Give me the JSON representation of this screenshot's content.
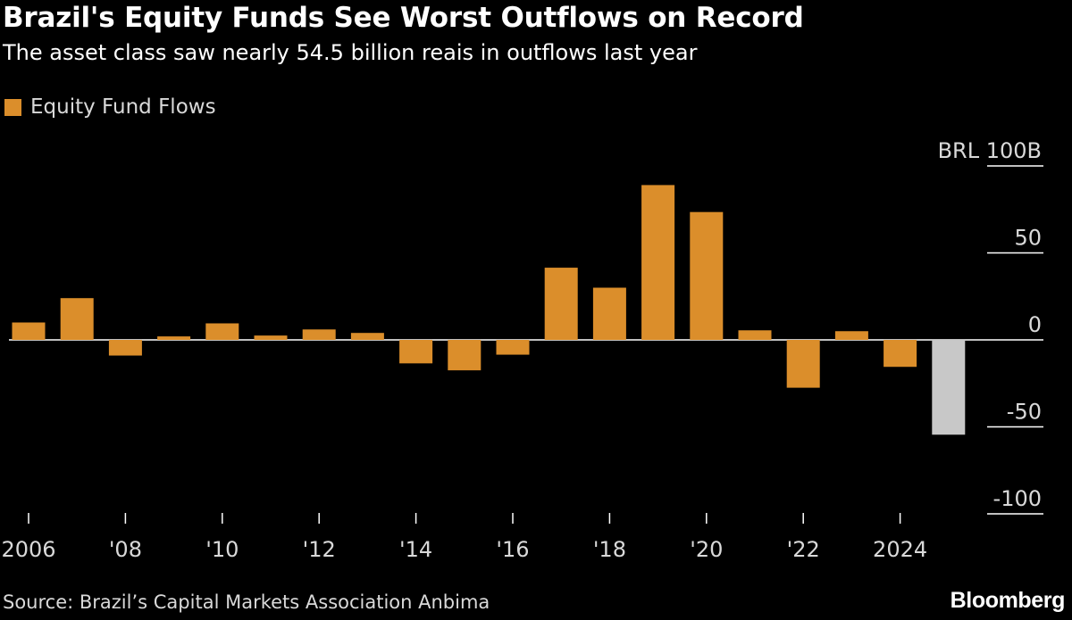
{
  "title": "Brazil's Equity Funds See Worst Outflows on Record",
  "subtitle": "The asset class saw nearly 54.5 billion reais in outflows last year",
  "legend": {
    "label": "Equity Fund Flows"
  },
  "source": "Source: Brazil’s Capital Markets Association Anbima",
  "brand": "Bloomberg",
  "colors": {
    "bar": "#db8e2b",
    "highlight": "#c8c8c8",
    "axis": "#ffffff",
    "text": "#d9d9d9",
    "background": "#000000"
  },
  "chart_data": {
    "type": "bar",
    "title": "Brazil's Equity Funds See Worst Outflows on Record",
    "unit_label": "BRL 100B",
    "ylim": [
      -100,
      100
    ],
    "y_ticks": [
      {
        "value": 100,
        "label": "BRL 100B"
      },
      {
        "value": 50,
        "label": "50"
      },
      {
        "value": 0,
        "label": "0"
      },
      {
        "value": -50,
        "label": "-50"
      },
      {
        "value": -100,
        "label": "-100"
      }
    ],
    "categories": [
      "2006",
      "2007",
      "2008",
      "2009",
      "2010",
      "2011",
      "2012",
      "2013",
      "2014",
      "2015",
      "2016",
      "2017",
      "2018",
      "2019",
      "2020",
      "2021",
      "2022",
      "2023",
      "2024",
      "2025"
    ],
    "values": [
      10,
      24,
      -9,
      2,
      9.5,
      2.5,
      6,
      4,
      -13.5,
      -17.5,
      -8.5,
      41.5,
      30,
      89,
      73.5,
      5.5,
      -27.5,
      5,
      -15.5,
      -54.5
    ],
    "highlight_index": 19,
    "x_ticks": [
      {
        "year": "2006",
        "label": "2006"
      },
      {
        "year": "2008",
        "label": "'08"
      },
      {
        "year": "2010",
        "label": "'10"
      },
      {
        "year": "2012",
        "label": "'12"
      },
      {
        "year": "2014",
        "label": "'14"
      },
      {
        "year": "2016",
        "label": "'16"
      },
      {
        "year": "2018",
        "label": "'18"
      },
      {
        "year": "2020",
        "label": "'20"
      },
      {
        "year": "2022",
        "label": "'22"
      },
      {
        "year": "2024",
        "label": "2024"
      }
    ],
    "legend": [
      "Equity Fund Flows"
    ]
  }
}
